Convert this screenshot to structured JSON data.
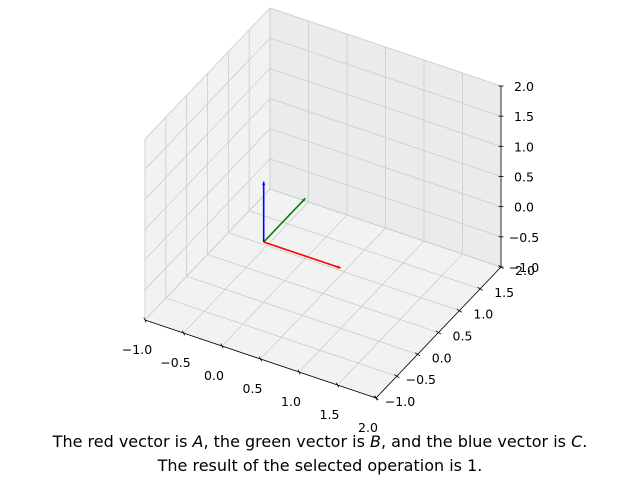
{
  "chart_data": {
    "type": "3d-vector",
    "xlim": [
      -1.0,
      2.0
    ],
    "ylim": [
      -1.0,
      2.0
    ],
    "zlim": [
      -1.0,
      2.0
    ],
    "x_ticks": [
      "−1.0",
      "−0.5",
      "0.0",
      "0.5",
      "1.0",
      "1.5",
      "2.0"
    ],
    "y_ticks": [
      "−1.0",
      "−0.5",
      "0.0",
      "0.5",
      "1.0",
      "1.5",
      "2.0"
    ],
    "z_ticks": [
      "−1.0",
      "−0.5",
      "0.0",
      "0.5",
      "1.0",
      "1.5",
      "2.0"
    ],
    "grid": true,
    "vectors": [
      {
        "name": "A",
        "color": "#ff0000",
        "origin": [
          0,
          0,
          0
        ],
        "components": [
          1,
          0,
          0
        ]
      },
      {
        "name": "B",
        "color": "#008000",
        "origin": [
          0,
          0,
          0
        ],
        "components": [
          0,
          1,
          0
        ]
      },
      {
        "name": "C",
        "color": "#0000ff",
        "origin": [
          0,
          0,
          0
        ],
        "components": [
          0,
          0,
          1
        ]
      }
    ]
  },
  "caption": {
    "line1": {
      "p1": "The red vector is ",
      "a": "A",
      "p2": ", the green vector is ",
      "b": "B",
      "p3": ", and the blue vector is ",
      "c": "C",
      "p4": "."
    },
    "line2": "The result of the selected operation is 1."
  }
}
